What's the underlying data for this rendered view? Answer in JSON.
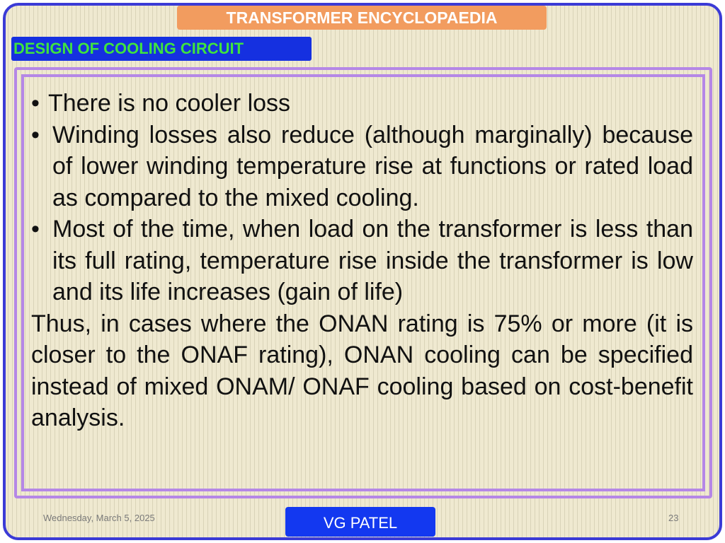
{
  "slide": {
    "title": "TRANSFORMER ENCYCLOPAEDIA",
    "section": "DESIGN OF COOLING CIRCUIT",
    "bullets": [
      "There is no cooler loss",
      "Winding losses also reduce (although marginally) because of lower winding temperature rise at functions or rated load as compared to the mixed cooling.",
      "Most of the time, when load on the transformer is less than its full rating, temperature rise inside the transformer is low and its life increases (gain of life)"
    ],
    "bullet_symbol": "•",
    "conclusion": "Thus, in cases where the ONAN rating is 75% or more (it is closer to the ONAF rating), ONAN cooling can be specified instead of mixed ONAM/ ONAF cooling based on cost-benefit analysis."
  },
  "footer": {
    "date": "Wednesday, March 5, 2025",
    "author": "VG PATEL",
    "page_number": "23"
  },
  "colors": {
    "frame_border": "#3b3bd6",
    "title_banner": "#f29c5f",
    "section_label_bg": "#1530e0",
    "section_label_text": "#3fe33f",
    "content_border": "#b587e6",
    "author_bg": "#1338f0"
  }
}
